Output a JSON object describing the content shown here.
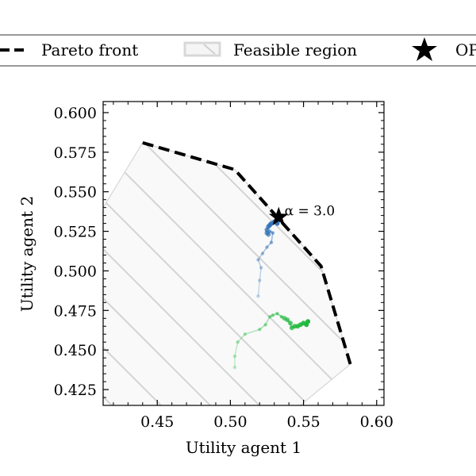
{
  "chart_data": {
    "type": "scatter",
    "xlabel": "Utility agent 1",
    "ylabel": "Utility agent 2",
    "xlim": [
      0.413,
      0.605
    ],
    "ylim": [
      0.415,
      0.607
    ],
    "xticks": [
      0.45,
      0.5,
      0.55,
      0.6
    ],
    "xtick_labels": [
      "0.45",
      "0.50",
      "0.55",
      "0.60"
    ],
    "yticks": [
      0.425,
      0.45,
      0.475,
      0.5,
      0.525,
      0.55,
      0.575,
      0.6
    ],
    "ytick_labels": [
      "0.425",
      "0.450",
      "0.475",
      "0.500",
      "0.525",
      "0.550",
      "0.575",
      "0.600"
    ],
    "legend": {
      "placement": "top (outside, clipped)",
      "entries": [
        {
          "label": "Pareto front",
          "marker": "dashed-line"
        },
        {
          "label": "Feasible region",
          "marker": "hatched-patch"
        },
        {
          "label": "OP",
          "marker": "star"
        }
      ]
    },
    "feasible_region": [
      [
        0.44,
        0.581
      ],
      [
        0.503,
        0.564
      ],
      [
        0.562,
        0.503
      ],
      [
        0.582,
        0.441
      ],
      [
        0.545,
        0.413
      ],
      [
        0.413,
        0.413
      ],
      [
        0.413,
        0.54
      ]
    ],
    "pareto_front": [
      [
        0.44,
        0.581
      ],
      [
        0.503,
        0.564
      ],
      [
        0.562,
        0.503
      ],
      [
        0.582,
        0.441
      ]
    ],
    "series": [
      {
        "color": "#2e6fb5",
        "points": [
          [
            0.533,
            0.532
          ],
          [
            0.532,
            0.53
          ],
          [
            0.53,
            0.531
          ],
          [
            0.528,
            0.53
          ],
          [
            0.527,
            0.529
          ],
          [
            0.526,
            0.528
          ],
          [
            0.525,
            0.526
          ],
          [
            0.525,
            0.524
          ],
          [
            0.526,
            0.523
          ],
          [
            0.527,
            0.525
          ],
          [
            0.529,
            0.524
          ],
          [
            0.528,
            0.518
          ],
          [
            0.525,
            0.515
          ],
          [
            0.522,
            0.511
          ],
          [
            0.519,
            0.507
          ],
          [
            0.521,
            0.502
          ],
          [
            0.52,
            0.494
          ],
          [
            0.519,
            0.484
          ]
        ]
      },
      {
        "color": "#1fb83c",
        "points": [
          [
            0.553,
            0.468
          ],
          [
            0.552,
            0.466
          ],
          [
            0.55,
            0.467
          ],
          [
            0.548,
            0.466
          ],
          [
            0.546,
            0.465
          ],
          [
            0.544,
            0.465
          ],
          [
            0.542,
            0.464
          ],
          [
            0.541,
            0.467
          ],
          [
            0.539,
            0.469
          ],
          [
            0.537,
            0.47
          ],
          [
            0.535,
            0.471
          ],
          [
            0.532,
            0.473
          ],
          [
            0.529,
            0.472
          ],
          [
            0.527,
            0.471
          ],
          [
            0.524,
            0.466
          ],
          [
            0.52,
            0.463
          ],
          [
            0.51,
            0.46
          ],
          [
            0.505,
            0.455
          ],
          [
            0.503,
            0.446
          ],
          [
            0.503,
            0.439
          ]
        ]
      }
    ],
    "op_star": {
      "label": "OP",
      "x": 0.533,
      "y": 0.534
    },
    "annotations": [
      {
        "text": "α = 3.0",
        "x": 0.537,
        "y": 0.537
      }
    ]
  }
}
